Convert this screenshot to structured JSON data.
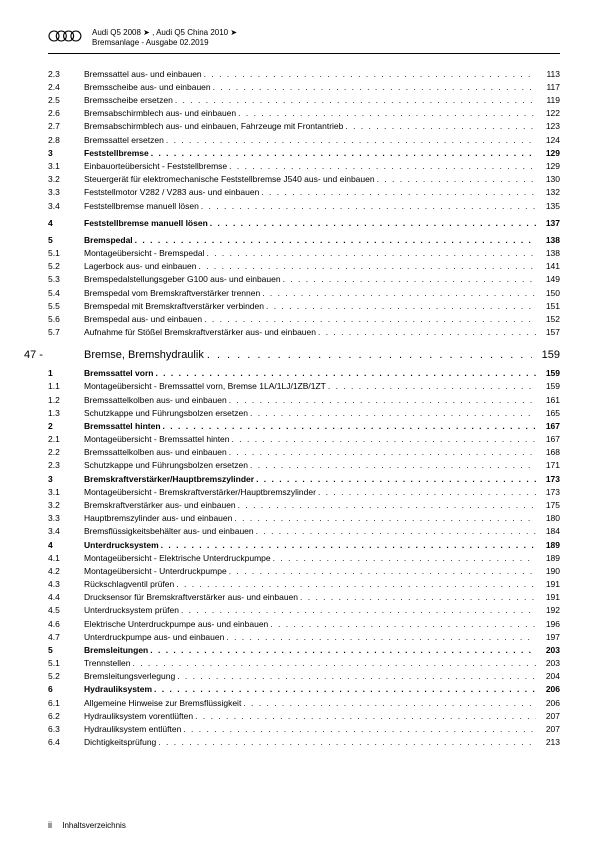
{
  "header": {
    "line1": "Audi Q5 2008 ➤ , Audi Q5 China 2010 ➤",
    "line2": "Bremsanlage - Ausgabe 02.2019"
  },
  "dots": ". . . . . . . . . . . . . . . . . . . . . . . . . . . . . . . . . . . . . . . . . . . . . . . . . . . . . . . . . . . . . . . . . . . . . . . . . . . . . . . . . . . . . . . . . . . . . . . . . . . .",
  "toc": [
    {
      "type": "item",
      "num": "2.3",
      "title": "Bremssattel aus- und einbauen",
      "page": "113"
    },
    {
      "type": "item",
      "num": "2.4",
      "title": "Bremsscheibe aus- und einbauen",
      "page": "117"
    },
    {
      "type": "item",
      "num": "2.5",
      "title": "Bremsscheibe ersetzen",
      "page": "119"
    },
    {
      "type": "item",
      "num": "2.6",
      "title": "Bremsabschirmblech aus- und einbauen",
      "page": "122"
    },
    {
      "type": "item",
      "num": "2.7",
      "title": "Bremsabschirmblech aus- und einbauen, Fahrzeuge mit Frontantrieb",
      "page": "123"
    },
    {
      "type": "item",
      "num": "2.8",
      "title": "Bremssattel ersetzen",
      "page": "124"
    },
    {
      "type": "bold",
      "num": "3",
      "title": "Feststellbremse",
      "page": "129"
    },
    {
      "type": "item",
      "num": "3.1",
      "title": "Einbauorteübersicht - Feststellbremse",
      "page": "129"
    },
    {
      "type": "item",
      "num": "3.2",
      "title": "Steuergerät für elektromechanische Feststellbremse J540 aus- und einbauen",
      "page": "130"
    },
    {
      "type": "item",
      "num": "3.3",
      "title": "Feststellmotor V282 / V283 aus- und einbauen",
      "page": "132"
    },
    {
      "type": "item",
      "num": "3.4",
      "title": "Feststellbremse manuell lösen",
      "page": "135"
    },
    {
      "type": "spacer"
    },
    {
      "type": "bold",
      "num": "4",
      "title": "Feststellbremse manuell lösen",
      "page": "137"
    },
    {
      "type": "spacer"
    },
    {
      "type": "bold",
      "num": "5",
      "title": "Bremspedal",
      "page": "138"
    },
    {
      "type": "item",
      "num": "5.1",
      "title": "Montageübersicht - Bremspedal",
      "page": "138"
    },
    {
      "type": "item",
      "num": "5.2",
      "title": "Lagerbock aus- und einbauen",
      "page": "141"
    },
    {
      "type": "item",
      "num": "5.3",
      "title": "Bremspedalstellungsgeber G100 aus- und einbauen",
      "page": "149"
    },
    {
      "type": "item",
      "num": "5.4",
      "title": "Bremspedal vom Bremskraftverstärker trennen",
      "page": "150"
    },
    {
      "type": "item",
      "num": "5.5",
      "title": "Bremspedal mit Bremskraftverstärker verbinden",
      "page": "151"
    },
    {
      "type": "item",
      "num": "5.6",
      "title": "Bremspedal aus- und einbauen",
      "page": "152"
    },
    {
      "type": "item",
      "num": "5.7",
      "title": "Aufnahme für Stößel Bremskraftverstärker aus- und einbauen",
      "page": "157"
    },
    {
      "type": "chapter",
      "num": "47 -",
      "title": "Bremse, Bremshydraulik",
      "page": "159"
    },
    {
      "type": "bold",
      "num": "1",
      "title": "Bremssattel vorn",
      "page": "159"
    },
    {
      "type": "item",
      "num": "1.1",
      "title": "Montageübersicht - Bremssattel vorn, Bremse 1LA/1LJ/1ZB/1ZT",
      "page": "159"
    },
    {
      "type": "item",
      "num": "1.2",
      "title": "Bremssattelkolben aus- und einbauen",
      "page": "161"
    },
    {
      "type": "item",
      "num": "1.3",
      "title": "Schutzkappe und Führungsbolzen ersetzen",
      "page": "165"
    },
    {
      "type": "bold",
      "num": "2",
      "title": "Bremssattel hinten",
      "page": "167"
    },
    {
      "type": "item",
      "num": "2.1",
      "title": "Montageübersicht - Bremssattel hinten",
      "page": "167"
    },
    {
      "type": "item",
      "num": "2.2",
      "title": "Bremssattelkolben aus- und einbauen",
      "page": "168"
    },
    {
      "type": "item",
      "num": "2.3",
      "title": "Schutzkappe und Führungsbolzen ersetzen",
      "page": "171"
    },
    {
      "type": "bold",
      "num": "3",
      "title": "Bremskraftverstärker/Hauptbremszylinder",
      "page": "173"
    },
    {
      "type": "item",
      "num": "3.1",
      "title": "Montageübersicht - Bremskraftverstärker/Hauptbremszylinder",
      "page": "173"
    },
    {
      "type": "item",
      "num": "3.2",
      "title": "Bremskraftverstärker aus- und einbauen",
      "page": "175"
    },
    {
      "type": "item",
      "num": "3.3",
      "title": "Hauptbremszylinder aus- und einbauen",
      "page": "180"
    },
    {
      "type": "item",
      "num": "3.4",
      "title": "Bremsflüssigkeitsbehälter aus- und einbauen",
      "page": "184"
    },
    {
      "type": "bold",
      "num": "4",
      "title": "Unterdrucksystem",
      "page": "189"
    },
    {
      "type": "item",
      "num": "4.1",
      "title": "Montageübersicht - Elektrische Unterdruckpumpe",
      "page": "189"
    },
    {
      "type": "item",
      "num": "4.2",
      "title": "Montageübersicht - Unterdruckpumpe",
      "page": "190"
    },
    {
      "type": "item",
      "num": "4.3",
      "title": "Rückschlagventil prüfen",
      "page": "191"
    },
    {
      "type": "item",
      "num": "4.4",
      "title": "Drucksensor für Bremskraftverstärker aus- und einbauen",
      "page": "191"
    },
    {
      "type": "item",
      "num": "4.5",
      "title": "Unterdrucksystem prüfen",
      "page": "192"
    },
    {
      "type": "item",
      "num": "4.6",
      "title": "Elektrische Unterdruckpumpe aus- und einbauen",
      "page": "196"
    },
    {
      "type": "item",
      "num": "4.7",
      "title": "Unterdruckpumpe aus- und einbauen",
      "page": "197"
    },
    {
      "type": "bold",
      "num": "5",
      "title": "Bremsleitungen",
      "page": "203"
    },
    {
      "type": "item",
      "num": "5.1",
      "title": "Trennstellen",
      "page": "203"
    },
    {
      "type": "item",
      "num": "5.2",
      "title": "Bremsleitungsverlegung",
      "page": "204"
    },
    {
      "type": "bold",
      "num": "6",
      "title": "Hydrauliksystem",
      "page": "206"
    },
    {
      "type": "item",
      "num": "6.1",
      "title": "Allgemeine Hinweise zur Bremsflüssigkeit",
      "page": "206"
    },
    {
      "type": "item",
      "num": "6.2",
      "title": "Hydrauliksystem vorentlüften",
      "page": "207"
    },
    {
      "type": "item",
      "num": "6.3",
      "title": "Hydrauliksystem entlüften",
      "page": "207"
    },
    {
      "type": "item",
      "num": "6.4",
      "title": "Dichtigkeitsprüfung",
      "page": "213"
    }
  ],
  "footer": {
    "pagenum": "ii",
    "label": "Inhaltsverzeichnis"
  }
}
